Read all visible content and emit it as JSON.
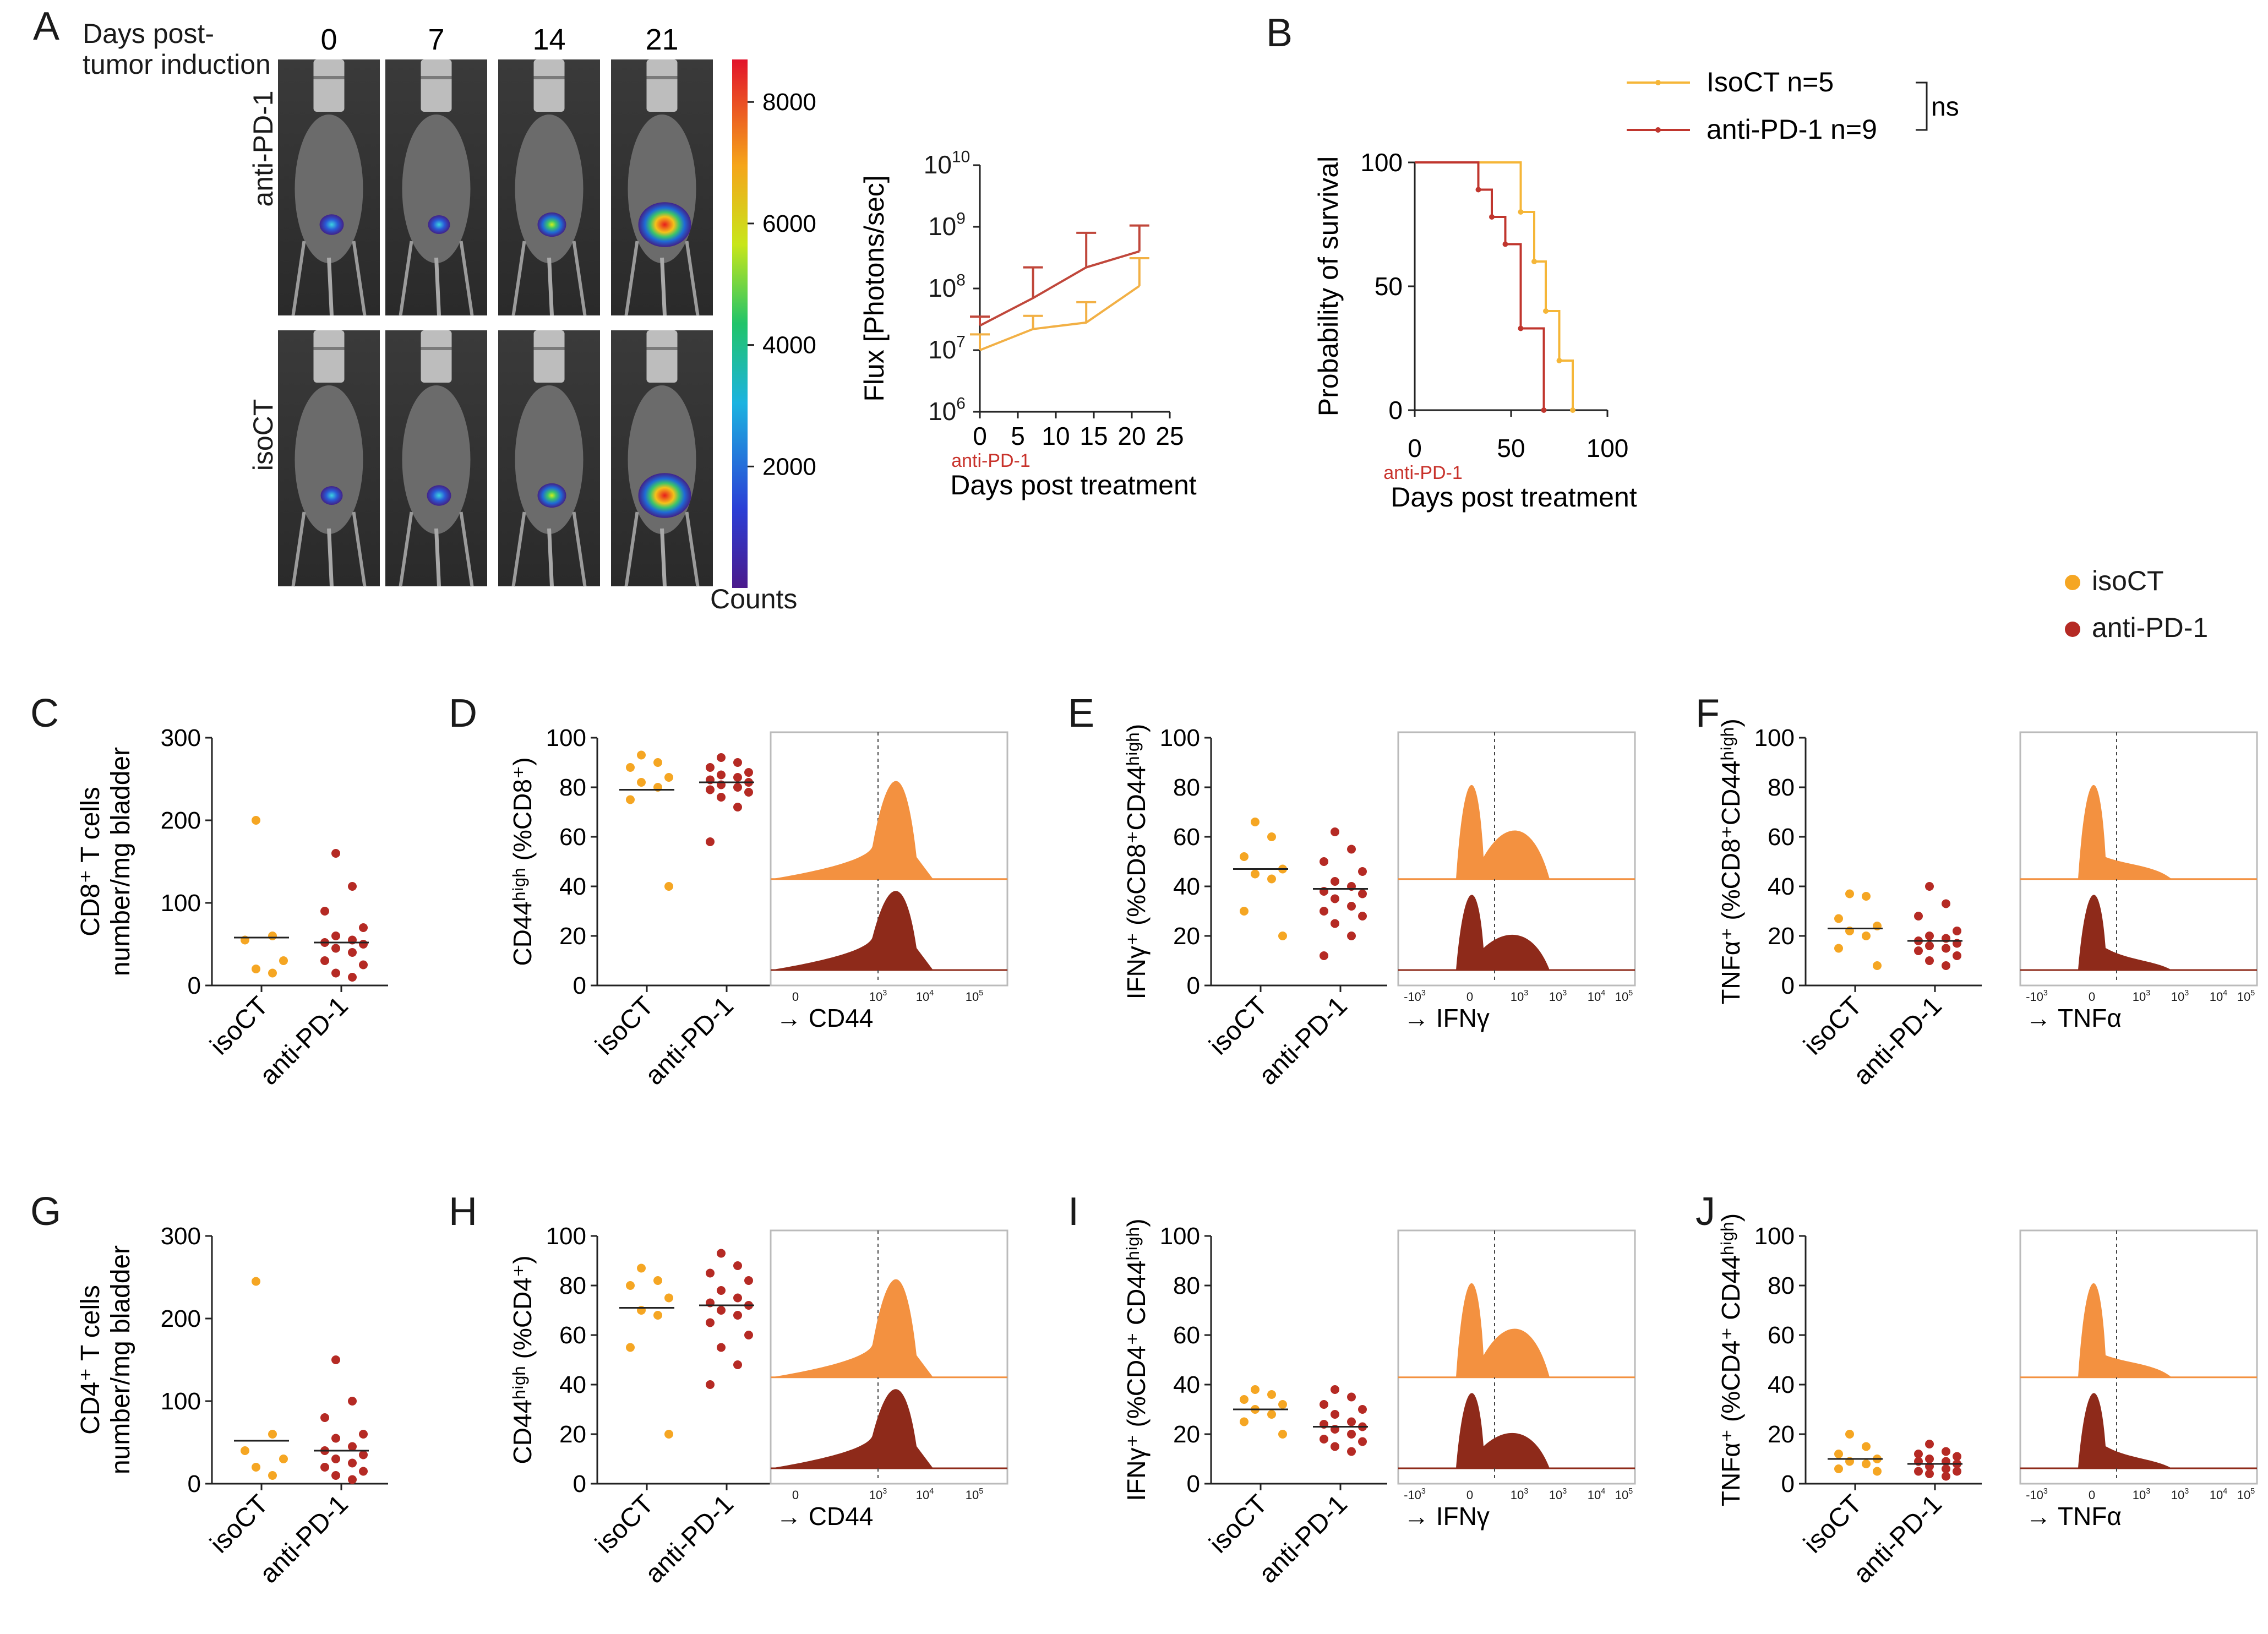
{
  "colors": {
    "isoCT": "#F5A623",
    "antiPD1": "#B52A24",
    "isoFill": "#F39140",
    "antiFill": "#8E2A1A"
  },
  "legend": {
    "items": [
      {
        "key": "isoCT",
        "label": "isoCT"
      },
      {
        "key": "antiPD1",
        "label": "anti-PD-1"
      }
    ]
  },
  "panelA": {
    "letter": "A",
    "header1": "Days post-",
    "header2": "tumor induction",
    "days": [
      "0",
      "7",
      "14",
      "21"
    ],
    "row_labels": [
      "anti-PD-1",
      "isoCT"
    ],
    "colorbar_ticks": [
      "8000",
      "6000",
      "4000",
      "2000"
    ],
    "colorbar_label": "Counts",
    "flux": {
      "ylabel": "Flux [Photons/sec]",
      "xlabel": "Days post treatment",
      "x_ticks": [
        "0",
        "5",
        "10",
        "15",
        "20",
        "25"
      ],
      "y_ticks": [
        "10",
        "10",
        "10",
        "10",
        "10"
      ],
      "y_exps": [
        "10",
        "9",
        "8",
        "7",
        "6"
      ],
      "treatment_marker": "anti-PD-1"
    }
  },
  "panelB": {
    "letter": "B",
    "ylabel": "Probability of survival",
    "xlabel": "Days post treatment",
    "x_ticks": [
      "0",
      "50",
      "100"
    ],
    "y_ticks": [
      "100",
      "50",
      "0"
    ],
    "treatment_marker": "anti-PD-1",
    "legend": [
      "IsoCT n=5",
      "anti-PD-1 n=9"
    ],
    "significance": "ns"
  },
  "flow_axis": {
    "cd44_ticks": [
      "0",
      "10",
      "10",
      "10"
    ],
    "cd44_exps": [
      "3",
      "4",
      "5"
    ],
    "cyt_ticks": [
      "-10",
      "0",
      "10",
      "10",
      "10",
      "10"
    ],
    "cyt_exps": [
      "3",
      "3",
      "4",
      "5"
    ]
  },
  "rows": [
    {
      "count": {
        "letter": "C",
        "ylabel1": "CD8⁺ T cells",
        "ylabel2": "number/mg bladder",
        "y_ticks": [
          "300",
          "200",
          "100",
          "0"
        ]
      },
      "cd44": {
        "letter": "D",
        "ylabel": "CD44ʰⁱᵍʰ (%CD8⁺)",
        "y_ticks": [
          "100",
          "80",
          "60",
          "40",
          "20",
          "0"
        ],
        "xlabel": "→ CD44"
      },
      "ifn": {
        "letter": "E",
        "ylabel": "IFNγ⁺ (%CD8⁺CD44ʰⁱᵍʰ)",
        "y_ticks": [
          "100",
          "80",
          "60",
          "40",
          "20",
          "0"
        ],
        "xlabel": "→ IFNγ"
      },
      "tnf": {
        "letter": "F",
        "ylabel": "TNFα⁺ (%CD8⁺CD44ʰⁱᵍʰ)",
        "y_ticks": [
          "100",
          "80",
          "60",
          "40",
          "20",
          "0"
        ],
        "xlabel": "→ TNFα"
      }
    },
    {
      "count": {
        "letter": "G",
        "ylabel1": "CD4⁺ T cells",
        "ylabel2": "number/mg bladder",
        "y_ticks": [
          "300",
          "200",
          "100",
          "0"
        ]
      },
      "cd44": {
        "letter": "H",
        "ylabel": "CD44ʰⁱᵍʰ (%CD4⁺)",
        "y_ticks": [
          "100",
          "80",
          "60",
          "40",
          "20",
          "0"
        ],
        "xlabel": "→ CD44"
      },
      "ifn": {
        "letter": "I",
        "ylabel": "IFNγ⁺ (%CD4⁺ CD44ʰⁱᵍʰ)",
        "y_ticks": [
          "100",
          "80",
          "60",
          "40",
          "20",
          "0"
        ],
        "xlabel": "→ IFNγ"
      },
      "tnf": {
        "letter": "J",
        "ylabel": "TNFα⁺ (%CD4⁺ CD44ʰⁱᵍʰ)",
        "y_ticks": [
          "100",
          "80",
          "60",
          "40",
          "20",
          "0"
        ],
        "xlabel": "→ TNFα"
      }
    }
  ],
  "group_labels": [
    "isoCT",
    "anti-PD-1"
  ],
  "chart_data": [
    {
      "id": "A-flux",
      "type": "line",
      "title": "",
      "xlabel": "Days post treatment",
      "ylabel": "Flux [Photons/sec]",
      "yscale": "log",
      "ylim": [
        1000000,
        10000000000
      ],
      "xlim": [
        0,
        25
      ],
      "series": [
        {
          "name": "anti-PD-1",
          "x": [
            0,
            7,
            14,
            21
          ],
          "y": [
            25000000,
            70000000,
            220000000,
            400000000
          ],
          "err": [
            35000000,
            220000000,
            800000000,
            1050000000
          ]
        },
        {
          "name": "isoCT",
          "x": [
            0,
            7,
            14,
            21
          ],
          "y": [
            10000000,
            22000000,
            28000000,
            110000000
          ],
          "err": [
            18000000,
            36000000,
            60000000,
            310000000
          ]
        }
      ]
    },
    {
      "id": "B-survival",
      "type": "line",
      "title": "",
      "xlabel": "Days post treatment",
      "ylabel": "Probability of survival",
      "xlim": [
        0,
        100
      ],
      "ylim": [
        0,
        100
      ],
      "series": [
        {
          "name": "IsoCT n=5",
          "x": [
            0,
            55,
            55,
            62,
            62,
            68,
            68,
            75,
            75,
            82,
            82
          ],
          "y": [
            100,
            100,
            80,
            80,
            60,
            60,
            40,
            40,
            20,
            20,
            0
          ]
        },
        {
          "name": "anti-PD-1 n=9",
          "x": [
            0,
            33,
            33,
            40,
            40,
            47,
            47,
            55,
            55,
            67,
            67
          ],
          "y": [
            100,
            100,
            89,
            89,
            78,
            78,
            67,
            67,
            33,
            33,
            0
          ]
        }
      ]
    },
    {
      "id": "C",
      "type": "scatter",
      "ylabel": "CD8⁺ T cells number/mg bladder",
      "ylim": [
        0,
        300
      ],
      "categories": [
        "isoCT",
        "anti-PD-1"
      ],
      "series": [
        {
          "name": "isoCT",
          "values": [
            200,
            60,
            55,
            30,
            20,
            15
          ],
          "median": 58
        },
        {
          "name": "anti-PD-1",
          "values": [
            160,
            120,
            90,
            70,
            60,
            55,
            52,
            50,
            45,
            40,
            30,
            25,
            15,
            10
          ],
          "median": 52
        }
      ]
    },
    {
      "id": "D",
      "type": "scatter",
      "ylabel": "CD44ʰⁱᵍʰ (%CD8⁺)",
      "ylim": [
        0,
        100
      ],
      "categories": [
        "isoCT",
        "anti-PD-1"
      ],
      "series": [
        {
          "name": "isoCT",
          "values": [
            93,
            90,
            88,
            84,
            82,
            80,
            75,
            40
          ],
          "median": 79
        },
        {
          "name": "anti-PD-1",
          "values": [
            92,
            90,
            88,
            86,
            85,
            84,
            83,
            82,
            81,
            80,
            79,
            78,
            76,
            72,
            58
          ],
          "median": 82
        }
      ]
    },
    {
      "id": "E",
      "type": "scatter",
      "ylabel": "IFNγ⁺ (%CD8⁺CD44ʰⁱᵍʰ)",
      "ylim": [
        0,
        100
      ],
      "categories": [
        "isoCT",
        "anti-PD-1"
      ],
      "series": [
        {
          "name": "isoCT",
          "values": [
            66,
            60,
            52,
            47,
            45,
            43,
            30,
            20
          ],
          "median": 47
        },
        {
          "name": "anti-PD-1",
          "values": [
            62,
            55,
            50,
            46,
            42,
            40,
            38,
            37,
            35,
            32,
            30,
            28,
            25,
            20,
            12
          ],
          "median": 39
        }
      ]
    },
    {
      "id": "F",
      "type": "scatter",
      "ylabel": "TNFα⁺ (%CD8⁺CD44ʰⁱᵍʰ)",
      "ylim": [
        0,
        100
      ],
      "categories": [
        "isoCT",
        "anti-PD-1"
      ],
      "series": [
        {
          "name": "isoCT",
          "values": [
            37,
            36,
            27,
            24,
            22,
            20,
            15,
            8
          ],
          "median": 23
        },
        {
          "name": "anti-PD-1",
          "values": [
            40,
            33,
            28,
            22,
            20,
            19,
            18,
            17,
            16,
            15,
            14,
            12,
            10,
            8
          ],
          "median": 18
        }
      ]
    },
    {
      "id": "G",
      "type": "scatter",
      "ylabel": "CD4⁺ T cells number/mg bladder",
      "ylim": [
        0,
        300
      ],
      "categories": [
        "isoCT",
        "anti-PD-1"
      ],
      "series": [
        {
          "name": "isoCT",
          "values": [
            245,
            60,
            40,
            30,
            20,
            10
          ],
          "median": 52
        },
        {
          "name": "anti-PD-1",
          "values": [
            150,
            100,
            80,
            60,
            55,
            45,
            40,
            35,
            30,
            25,
            20,
            15,
            10,
            5
          ],
          "median": 40
        }
      ]
    },
    {
      "id": "H",
      "type": "scatter",
      "ylabel": "CD44ʰⁱᵍʰ (%CD4⁺)",
      "ylim": [
        0,
        100
      ],
      "categories": [
        "isoCT",
        "anti-PD-1"
      ],
      "series": [
        {
          "name": "isoCT",
          "values": [
            87,
            82,
            80,
            75,
            70,
            68,
            55,
            20
          ],
          "median": 71
        },
        {
          "name": "anti-PD-1",
          "values": [
            93,
            88,
            85,
            82,
            78,
            75,
            73,
            72,
            70,
            68,
            65,
            60,
            55,
            48,
            40
          ],
          "median": 72
        }
      ]
    },
    {
      "id": "I",
      "type": "scatter",
      "ylabel": "IFNγ⁺ (%CD4⁺ CD44ʰⁱᵍʰ)",
      "ylim": [
        0,
        100
      ],
      "categories": [
        "isoCT",
        "anti-PD-1"
      ],
      "series": [
        {
          "name": "isoCT",
          "values": [
            38,
            36,
            34,
            32,
            30,
            28,
            25,
            20
          ],
          "median": 30
        },
        {
          "name": "anti-PD-1",
          "values": [
            38,
            35,
            32,
            30,
            28,
            25,
            24,
            23,
            22,
            20,
            18,
            17,
            15,
            13
          ],
          "median": 23
        }
      ]
    },
    {
      "id": "J",
      "type": "scatter",
      "ylabel": "TNFα⁺ (%CD4⁺ CD44ʰⁱᵍʰ)",
      "ylim": [
        0,
        100
      ],
      "categories": [
        "isoCT",
        "anti-PD-1"
      ],
      "series": [
        {
          "name": "isoCT",
          "values": [
            20,
            15,
            12,
            10,
            9,
            8,
            6,
            5
          ],
          "median": 10
        },
        {
          "name": "anti-PD-1",
          "values": [
            16,
            13,
            12,
            11,
            10,
            9,
            9,
            8,
            7,
            6,
            5,
            5,
            4,
            3
          ],
          "median": 8
        }
      ]
    }
  ]
}
